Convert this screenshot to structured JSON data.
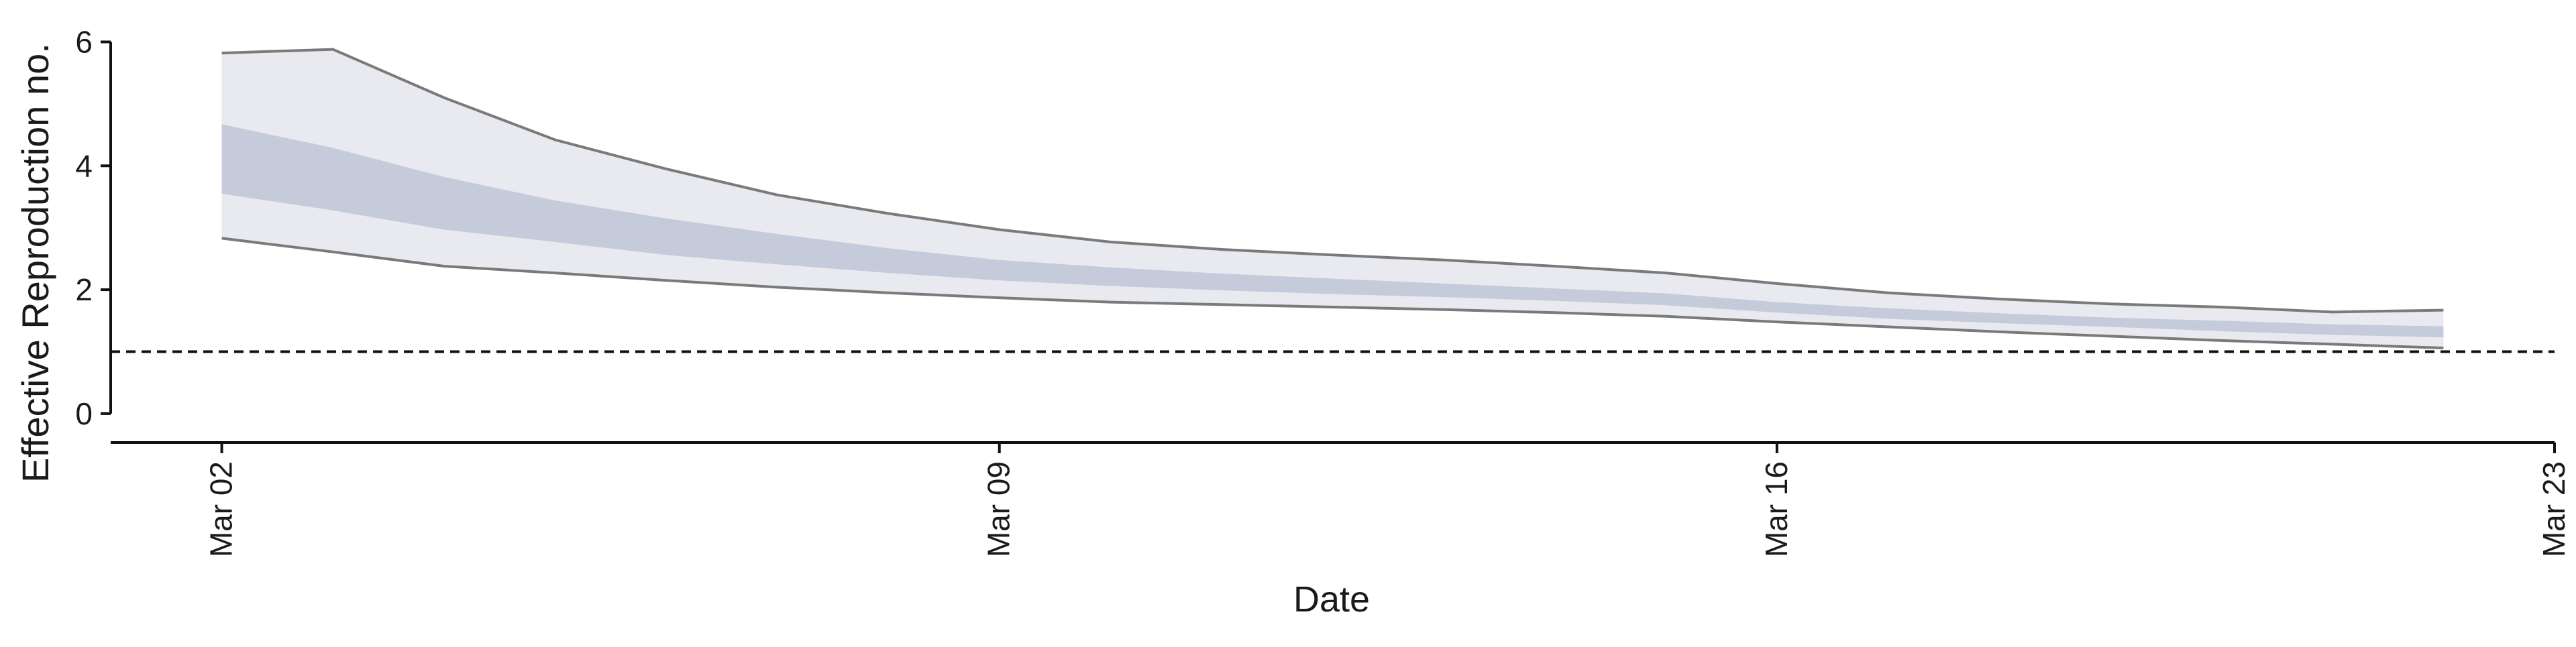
{
  "chart_data": {
    "type": "area",
    "xlabel": "Date",
    "ylabel": "Effective Reproduction no.",
    "x_start": "2020-03-02",
    "x_ticks": [
      "Mar 02",
      "Mar 09",
      "Mar 16",
      "Mar 23"
    ],
    "x_range": [
      "Mar 01",
      "Mar 23"
    ],
    "y_ticks": [
      0,
      2,
      4,
      6
    ],
    "ylim": [
      -0.25,
      6.2
    ],
    "reference_line": 1,
    "grid": false,
    "dates": [
      "Mar 02",
      "Mar 03",
      "Mar 04",
      "Mar 05",
      "Mar 06",
      "Mar 07",
      "Mar 08",
      "Mar 09",
      "Mar 10",
      "Mar 11",
      "Mar 12",
      "Mar 13",
      "Mar 14",
      "Mar 15",
      "Mar 16",
      "Mar 17",
      "Mar 18",
      "Mar 19",
      "Mar 20",
      "Mar 21",
      "Mar 22"
    ],
    "outer_upper": [
      5.82,
      5.88,
      5.1,
      4.42,
      3.95,
      3.53,
      3.23,
      2.97,
      2.77,
      2.65,
      2.56,
      2.48,
      2.38,
      2.27,
      2.1,
      1.95,
      1.85,
      1.77,
      1.72,
      1.64,
      1.67
    ],
    "outer_lower": [
      2.83,
      2.61,
      2.38,
      2.27,
      2.15,
      2.04,
      1.95,
      1.87,
      1.8,
      1.76,
      1.72,
      1.68,
      1.63,
      1.57,
      1.48,
      1.4,
      1.32,
      1.25,
      1.18,
      1.12,
      1.06
    ],
    "inner_upper": [
      4.67,
      4.29,
      3.82,
      3.44,
      3.15,
      2.9,
      2.67,
      2.48,
      2.36,
      2.26,
      2.18,
      2.1,
      2.02,
      1.94,
      1.8,
      1.7,
      1.62,
      1.55,
      1.5,
      1.44,
      1.41
    ],
    "inner_lower": [
      3.55,
      3.28,
      2.97,
      2.77,
      2.56,
      2.41,
      2.27,
      2.15,
      2.06,
      1.99,
      1.93,
      1.88,
      1.82,
      1.75,
      1.63,
      1.53,
      1.46,
      1.4,
      1.33,
      1.27,
      1.23
    ],
    "colors": {
      "outer_band": "#e9eaf0",
      "inner_band": "#c5cbda",
      "bound_line": "#7a7a7a",
      "reference_line": "#111111",
      "axis": "#111111"
    }
  }
}
